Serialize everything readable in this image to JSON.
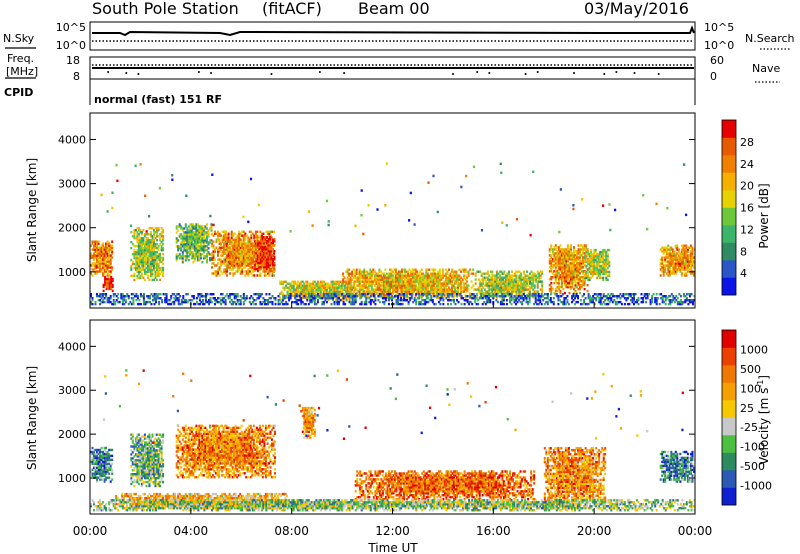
{
  "header": {
    "station": "South Pole Station",
    "mode": "(fitACF)",
    "beam": "Beam 00",
    "date": "03/May/2016"
  },
  "noise_panel": {
    "left_label": "N.Sky",
    "right_label": "N.Search",
    "left_ticks": [
      "10^5",
      "10^0"
    ],
    "right_ticks": [
      "10^5",
      "10^0"
    ]
  },
  "freq_panel": {
    "left_label_1": "Freq.",
    "left_label_2": "[MHz]",
    "right_label": "Nave",
    "left_ticks": [
      "18",
      "8"
    ],
    "right_ticks": [
      "60",
      "0"
    ]
  },
  "cpid": {
    "label": "CPID",
    "text": "normal (fast) 151 RF"
  },
  "chart_data": [
    {
      "type": "heatmap",
      "quantity": "power",
      "xlabel": "Time UT",
      "ylabel": "Slant Range [km]",
      "x_ticks": [
        "00:00",
        "04:00",
        "08:00",
        "12:00",
        "16:00",
        "20:00",
        "00:00"
      ],
      "y_ticks": [
        "1000",
        "2000",
        "3000",
        "4000"
      ],
      "y_tick_values": [
        1000,
        2000,
        3000,
        4000
      ],
      "xlim_hours": [
        0,
        24
      ],
      "ylim_km": [
        180,
        4600
      ],
      "colorbar": {
        "label": "Power [dB]",
        "ticks": [
          "4",
          "8",
          "12",
          "16",
          "20",
          "24",
          "28"
        ],
        "colors": [
          "#0a14e6",
          "#2a56c8",
          "#2e8b62",
          "#3cb46a",
          "#6ec83c",
          "#e6d200",
          "#f5b000",
          "#f08000",
          "#e85a00",
          "#e60000"
        ]
      },
      "echo_regions": [
        {
          "t0": 0.0,
          "t1": 0.9,
          "r0": 900,
          "r1": 1700,
          "level": 0.75
        },
        {
          "t0": 0.5,
          "t1": 0.9,
          "r0": 550,
          "r1": 900,
          "level": 0.95
        },
        {
          "t0": 1.6,
          "t1": 2.9,
          "r0": 800,
          "r1": 2000,
          "level": 0.5
        },
        {
          "t0": 3.4,
          "t1": 4.8,
          "r0": 1200,
          "r1": 2100,
          "level": 0.4
        },
        {
          "t0": 4.8,
          "t1": 7.3,
          "r0": 900,
          "r1": 1900,
          "level": 0.7
        },
        {
          "t0": 6.5,
          "t1": 7.3,
          "r0": 1000,
          "r1": 1800,
          "level": 0.9
        },
        {
          "t0": 7.5,
          "t1": 10.5,
          "r0": 350,
          "r1": 800,
          "level": 0.55
        },
        {
          "t0": 10.0,
          "t1": 15.2,
          "r0": 400,
          "r1": 1050,
          "level": 0.65
        },
        {
          "t0": 15.2,
          "t1": 17.9,
          "r0": 400,
          "r1": 1000,
          "level": 0.5
        },
        {
          "t0": 18.2,
          "t1": 19.7,
          "r0": 500,
          "r1": 1600,
          "level": 0.7
        },
        {
          "t0": 19.6,
          "t1": 20.6,
          "r0": 800,
          "r1": 1500,
          "level": 0.5
        },
        {
          "t0": 22.6,
          "t1": 24.0,
          "r0": 900,
          "r1": 1600,
          "level": 0.7
        },
        {
          "t0": 0.0,
          "t1": 24.0,
          "r0": 250,
          "r1": 500,
          "level": 0.15
        }
      ]
    },
    {
      "type": "heatmap",
      "quantity": "velocity",
      "xlabel": "Time UT",
      "ylabel": "Slant Range [km]",
      "x_ticks": [
        "00:00",
        "04:00",
        "08:00",
        "12:00",
        "16:00",
        "20:00",
        "00:00"
      ],
      "y_ticks": [
        "1000",
        "2000",
        "3000",
        "4000"
      ],
      "y_tick_values": [
        1000,
        2000,
        3000,
        4000
      ],
      "xlim_hours": [
        0,
        24
      ],
      "ylim_km": [
        180,
        4600
      ],
      "colorbar": {
        "label": "Velocity [m s^-1]",
        "ticks": [
          "1000",
          "500",
          "100",
          "25",
          "-25",
          "-100",
          "-500",
          "-1000"
        ],
        "colors": [
          "#1020d0",
          "#2a5ab4",
          "#2e8b60",
          "#4cbf40",
          "#c8c8c8",
          "#f5c800",
          "#f5a000",
          "#f07800",
          "#ec4000",
          "#e00000"
        ]
      },
      "echo_regions": [
        {
          "t0": 0.0,
          "t1": 0.9,
          "r0": 900,
          "r1": 1700,
          "level": 0.25
        },
        {
          "t0": 1.6,
          "t1": 2.9,
          "r0": 800,
          "r1": 2000,
          "level": 0.35
        },
        {
          "t0": 3.4,
          "t1": 7.3,
          "r0": 1000,
          "r1": 2200,
          "level": 0.72
        },
        {
          "t0": 1.0,
          "t1": 7.8,
          "r0": 300,
          "r1": 650,
          "level": 0.6
        },
        {
          "t0": 8.4,
          "t1": 8.9,
          "r0": 1900,
          "r1": 2600,
          "level": 0.7
        },
        {
          "t0": 10.5,
          "t1": 17.6,
          "r0": 500,
          "r1": 1150,
          "level": 0.78
        },
        {
          "t0": 18.0,
          "t1": 20.4,
          "r0": 400,
          "r1": 1700,
          "level": 0.7
        },
        {
          "t0": 22.6,
          "t1": 24.0,
          "r0": 900,
          "r1": 1600,
          "level": 0.25
        },
        {
          "t0": 0.0,
          "t1": 24.0,
          "r0": 250,
          "r1": 500,
          "level": 0.4
        }
      ]
    }
  ]
}
